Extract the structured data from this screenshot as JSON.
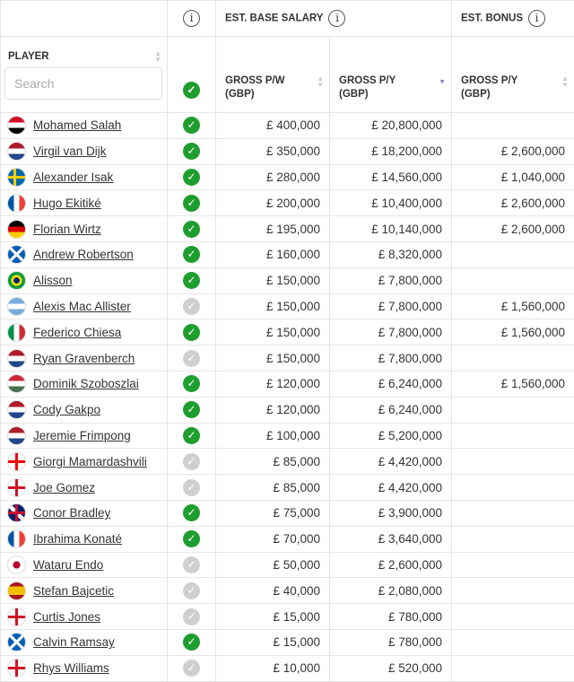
{
  "header": {
    "group_check_info": "i",
    "group_base": "EST. BASE SALARY",
    "group_bonus": "EST. BONUS",
    "info_icon": "i",
    "player": "PLAYER",
    "search_placeholder": "Search",
    "pw": "GROSS P/W",
    "py": "GROSS P/Y",
    "bonus_py": "GROSS P/Y",
    "gbp": "(GBP)",
    "sorted_column": "base GROSS P/Y",
    "sort_direction": "descending"
  },
  "colors": {
    "check_on": "#1e9e2e",
    "check_off": "#cfcfcf",
    "sort_active": "#7a84c9"
  },
  "rows": [
    {
      "name": "Mohamed Salah",
      "flag": "egypt",
      "ok": true,
      "pw": "£ 400,000",
      "py": "£ 20,800,000",
      "bonus": ""
    },
    {
      "name": "Virgil van Dijk",
      "flag": "netherlands",
      "ok": true,
      "pw": "£ 350,000",
      "py": "£ 18,200,000",
      "bonus": "£ 2,600,000"
    },
    {
      "name": "Alexander Isak",
      "flag": "sweden",
      "ok": true,
      "pw": "£ 280,000",
      "py": "£ 14,560,000",
      "bonus": "£ 1,040,000"
    },
    {
      "name": "Hugo Ekitiké",
      "flag": "france",
      "ok": true,
      "pw": "£ 200,000",
      "py": "£ 10,400,000",
      "bonus": "£ 2,600,000"
    },
    {
      "name": "Florian Wirtz",
      "flag": "germany",
      "ok": true,
      "pw": "£ 195,000",
      "py": "£ 10,140,000",
      "bonus": "£ 2,600,000"
    },
    {
      "name": "Andrew Robertson",
      "flag": "scotland",
      "ok": true,
      "pw": "£ 160,000",
      "py": "£ 8,320,000",
      "bonus": ""
    },
    {
      "name": "Alisson",
      "flag": "brazil",
      "ok": true,
      "pw": "£ 150,000",
      "py": "£ 7,800,000",
      "bonus": ""
    },
    {
      "name": "Alexis Mac Allister",
      "flag": "argentina",
      "ok": false,
      "pw": "£ 150,000",
      "py": "£ 7,800,000",
      "bonus": "£ 1,560,000"
    },
    {
      "name": "Federico Chiesa",
      "flag": "italy",
      "ok": true,
      "pw": "£ 150,000",
      "py": "£ 7,800,000",
      "bonus": "£ 1,560,000"
    },
    {
      "name": "Ryan Gravenberch",
      "flag": "netherlands",
      "ok": false,
      "pw": "£ 150,000",
      "py": "£ 7,800,000",
      "bonus": ""
    },
    {
      "name": "Dominik Szoboszlai",
      "flag": "hungary",
      "ok": true,
      "pw": "£ 120,000",
      "py": "£ 6,240,000",
      "bonus": "£ 1,560,000"
    },
    {
      "name": "Cody Gakpo",
      "flag": "netherlands",
      "ok": true,
      "pw": "£ 120,000",
      "py": "£ 6,240,000",
      "bonus": ""
    },
    {
      "name": "Jeremie Frimpong",
      "flag": "netherlands",
      "ok": true,
      "pw": "£ 100,000",
      "py": "£ 5,200,000",
      "bonus": ""
    },
    {
      "name": "Giorgi Mamardashvili",
      "flag": "georgia",
      "ok": false,
      "pw": "£ 85,000",
      "py": "£ 4,420,000",
      "bonus": ""
    },
    {
      "name": "Joe Gomez",
      "flag": "england",
      "ok": false,
      "pw": "£ 85,000",
      "py": "£ 4,420,000",
      "bonus": ""
    },
    {
      "name": "Conor Bradley",
      "flag": "uk",
      "ok": true,
      "pw": "£ 75,000",
      "py": "£ 3,900,000",
      "bonus": ""
    },
    {
      "name": "Ibrahima Konaté",
      "flag": "france",
      "ok": true,
      "pw": "£ 70,000",
      "py": "£ 3,640,000",
      "bonus": ""
    },
    {
      "name": "Wataru Endo",
      "flag": "japan",
      "ok": false,
      "pw": "£ 50,000",
      "py": "£ 2,600,000",
      "bonus": ""
    },
    {
      "name": "Stefan Bajcetic",
      "flag": "spain",
      "ok": false,
      "pw": "£ 40,000",
      "py": "£ 2,080,000",
      "bonus": ""
    },
    {
      "name": "Curtis Jones",
      "flag": "england",
      "ok": false,
      "pw": "£ 15,000",
      "py": "£ 780,000",
      "bonus": ""
    },
    {
      "name": "Calvin Ramsay",
      "flag": "scotland",
      "ok": true,
      "pw": "£ 15,000",
      "py": "£ 780,000",
      "bonus": ""
    },
    {
      "name": "Rhys Williams",
      "flag": "england",
      "ok": false,
      "pw": "£ 10,000",
      "py": "£ 520,000",
      "bonus": ""
    }
  ]
}
